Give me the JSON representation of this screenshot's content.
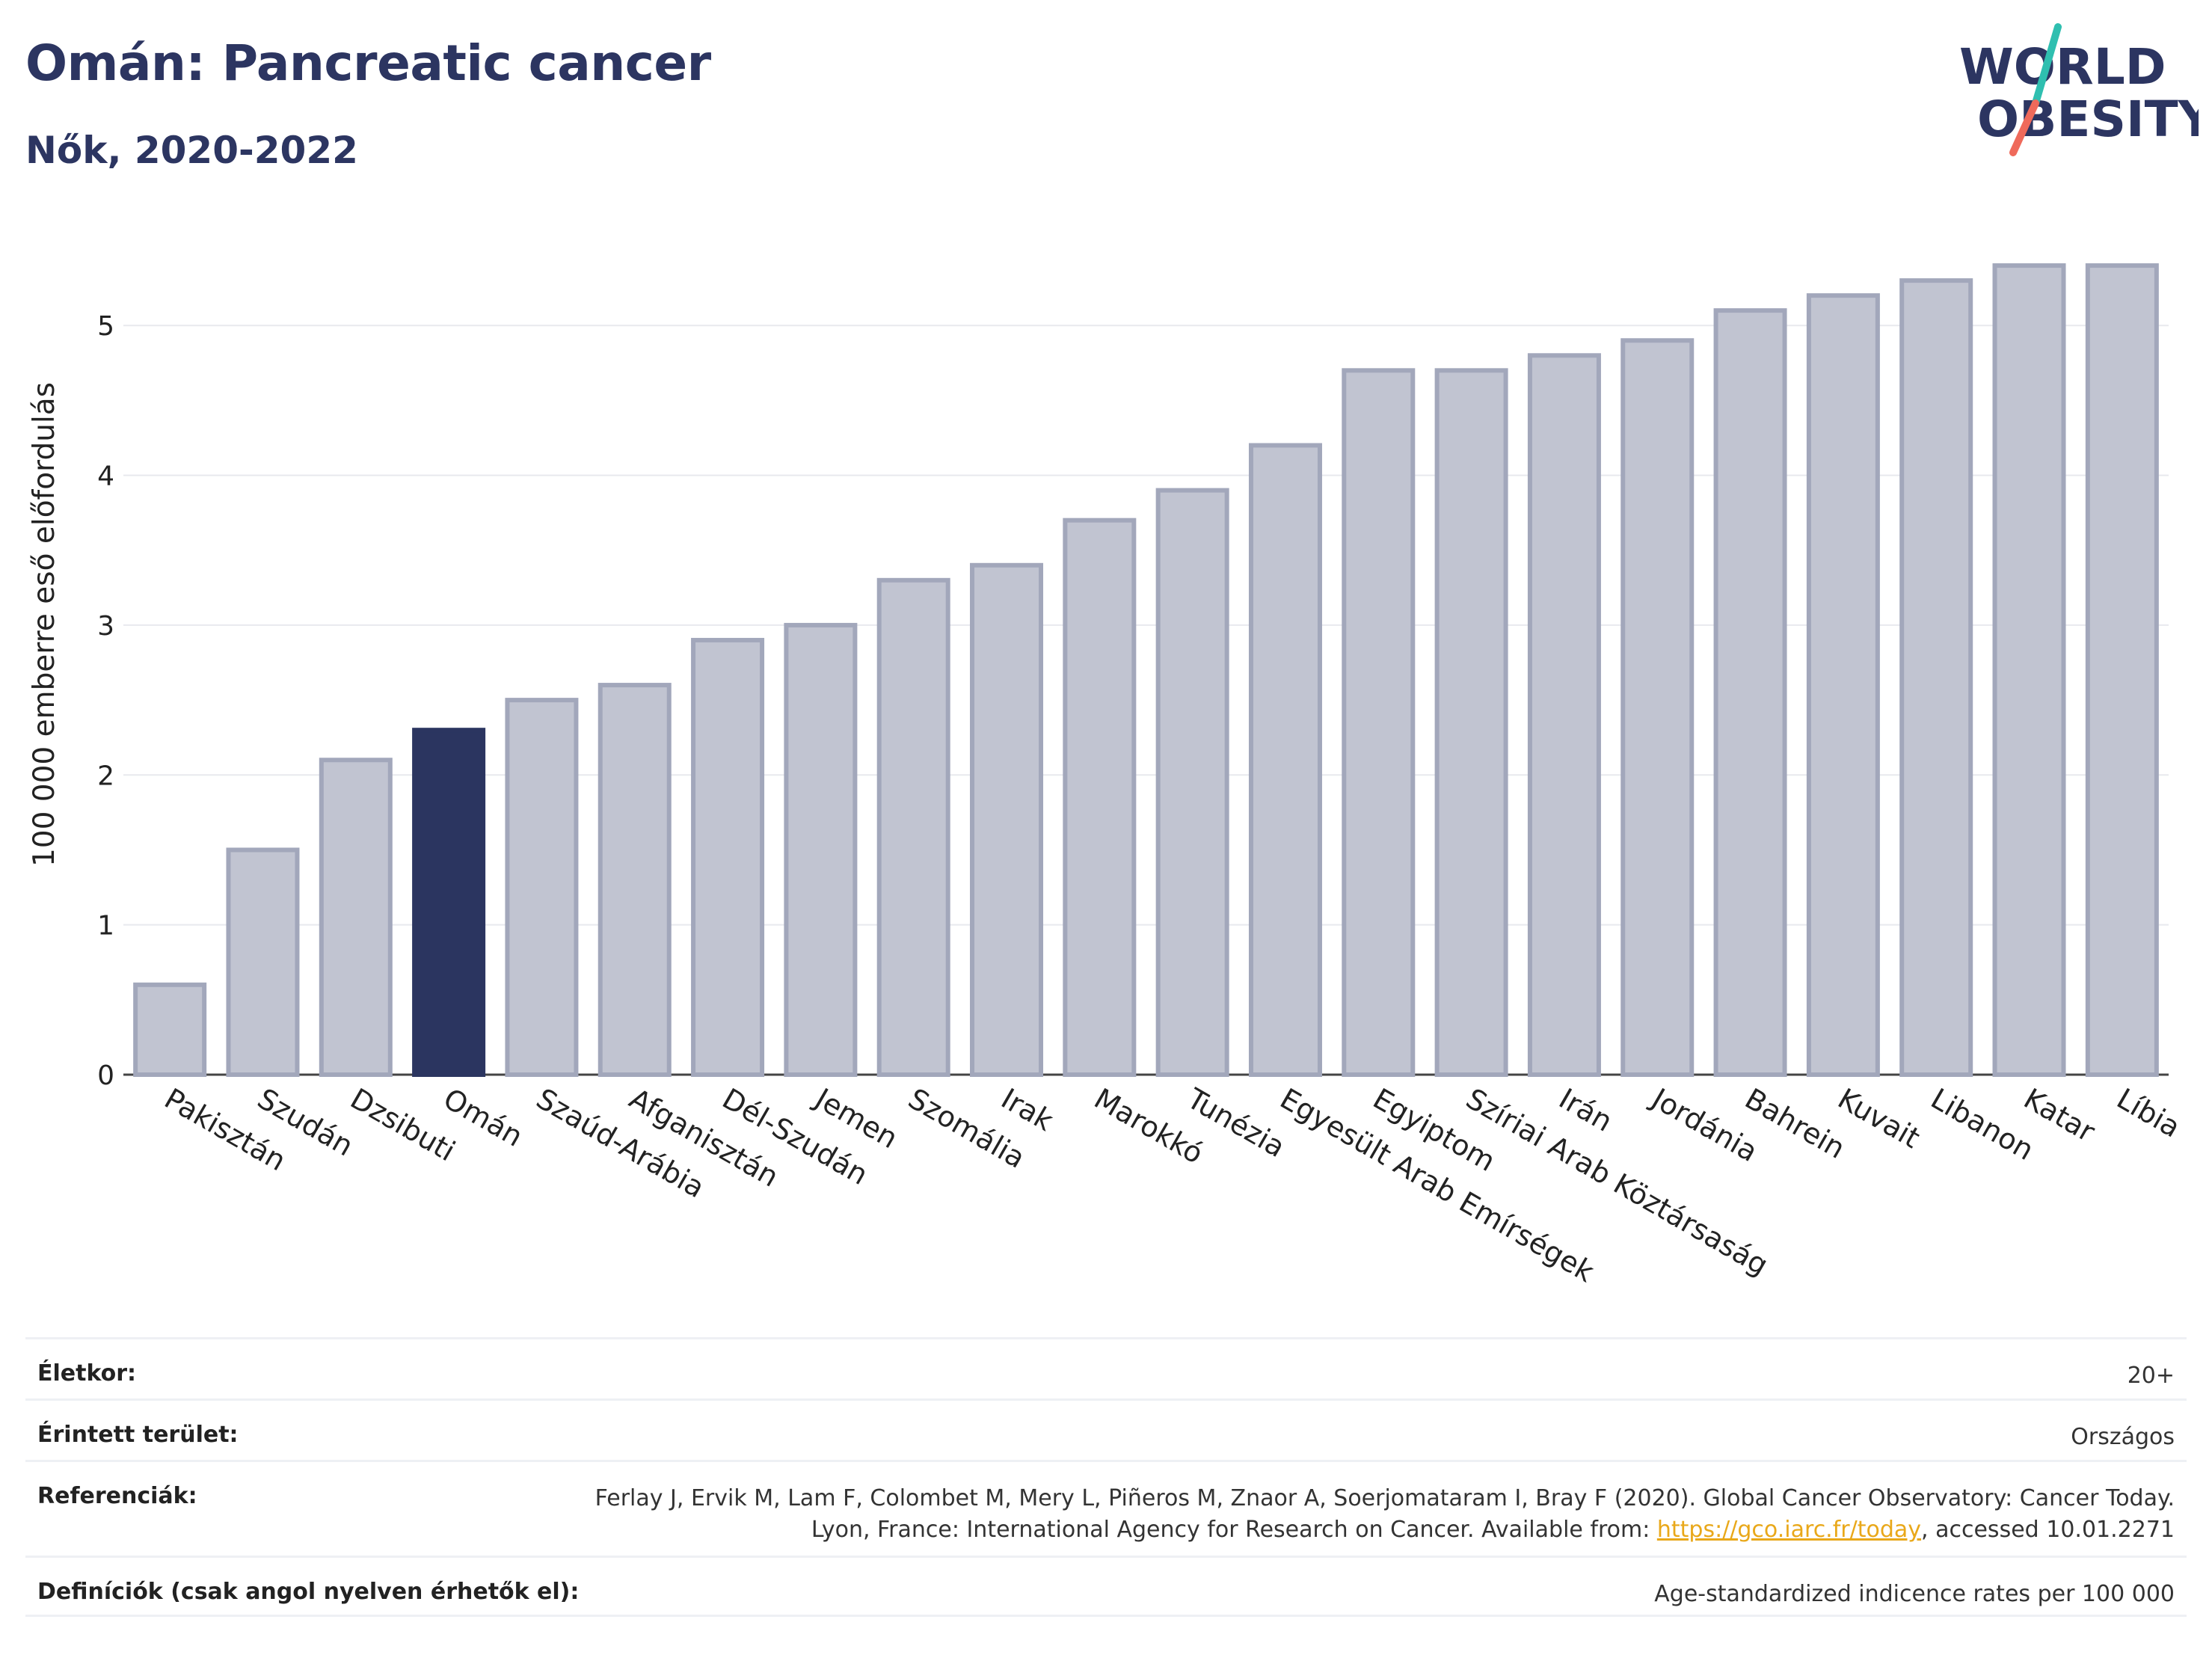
{
  "title": "Omán: Pancreatic cancer",
  "subtitle": "Nők, 2020-2022",
  "logo": {
    "line1": "WORLD",
    "line2": "OBESITY"
  },
  "chart_data": {
    "type": "bar",
    "ylabel": "100 000 emberre eső előfordulás",
    "xlabel": "",
    "ylim": [
      0,
      5.6
    ],
    "yticks": [
      0,
      1,
      2,
      3,
      4,
      5
    ],
    "grid": true,
    "highlight": "Omán",
    "colors": {
      "bar": "#c1c4d1",
      "bar_border": "#a2a7bb",
      "highlight": "#2b3560"
    },
    "categories": [
      "Pakisztán",
      "Szudán",
      "Dzsibuti",
      "Omán",
      "Szaúd-Arábia",
      "Afganisztán",
      "Dél-Szudán",
      "Jemen",
      "Szomália",
      "Irak",
      "Marokkó",
      "Tunézia",
      "Egyesült Arab Emírségek",
      "Egyiptom",
      "Szíriai Arab Köztársaság",
      "Irán",
      "Jordánia",
      "Bahrein",
      "Kuvait",
      "Libanon",
      "Katar",
      "Líbia"
    ],
    "values": [
      0.6,
      1.5,
      2.1,
      2.3,
      2.5,
      2.6,
      2.9,
      3.0,
      3.3,
      3.4,
      3.7,
      3.9,
      4.2,
      4.7,
      4.7,
      4.8,
      4.9,
      5.1,
      5.2,
      5.3,
      5.4,
      5.4
    ]
  },
  "info": {
    "age": {
      "label": "Életkor:",
      "value": "20+"
    },
    "area": {
      "label": "Érintett terület:",
      "value": "Országos"
    },
    "refs": {
      "label": "Referenciák:",
      "text1": "Ferlay J, Ervik M, Lam F, Colombet M, Mery L, Piñeros M, Znaor A, Soerjomataram I, Bray F (2020). Global Cancer Observatory: Cancer Today. Lyon, France: International Agency for Research on Cancer. Available from: ",
      "link": "https://gco.iarc.fr/today",
      "text2": ", accessed 10.01.2271"
    },
    "defs": {
      "label": "Definíciók (csak angol nyelven érhetők el):",
      "value": "Age-standardized indicence rates per 100 000"
    }
  }
}
